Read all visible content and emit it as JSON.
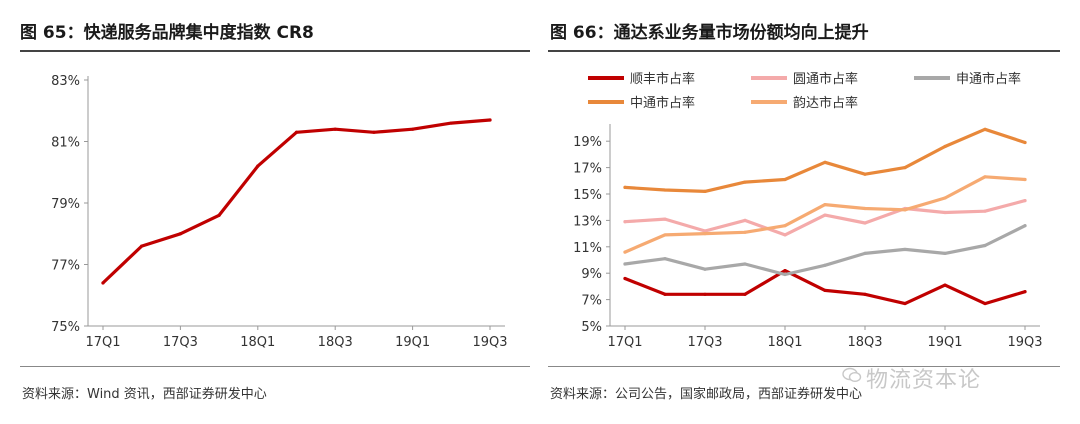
{
  "left": {
    "figure_title": "图 65：快递服务品牌集中度指数 CR8",
    "source": "资料来源：Wind 资讯，西部证券研发中心"
  },
  "right": {
    "figure_title": "图 66：通达系业务量市场份额均向上提升",
    "source": "资料来源：公司公告，国家邮政局，西部证券研发中心"
  },
  "watermark": "物流资本论",
  "chart_data": [
    {
      "type": "line",
      "title": "快递服务品牌集中度指数 CR8",
      "x": [
        "17Q1",
        "17Q2",
        "17Q3",
        "17Q4",
        "18Q1",
        "18Q2",
        "18Q3",
        "18Q4",
        "19Q1",
        "19Q2",
        "19Q3"
      ],
      "tick_labels": [
        "17Q1",
        "17Q3",
        "18Q1",
        "18Q3",
        "19Q1",
        "19Q3"
      ],
      "yticks": [
        "75%",
        "77%",
        "79%",
        "81%",
        "83%"
      ],
      "ylim": [
        75,
        83
      ],
      "series": [
        {
          "name": "CR8",
          "color": "#c00000",
          "values": [
            76.4,
            77.6,
            78.0,
            78.6,
            80.2,
            81.3,
            81.4,
            81.3,
            81.4,
            81.6,
            81.7
          ]
        }
      ],
      "xlabel": "",
      "ylabel": ""
    },
    {
      "type": "line",
      "title": "通达系业务量市场份额均向上提升",
      "x": [
        "17Q1",
        "17Q2",
        "17Q3",
        "17Q4",
        "18Q1",
        "18Q2",
        "18Q3",
        "18Q4",
        "19Q1",
        "19Q2",
        "19Q3"
      ],
      "tick_labels": [
        "17Q1",
        "17Q3",
        "18Q1",
        "18Q3",
        "19Q1",
        "19Q3"
      ],
      "yticks": [
        "5%",
        "7%",
        "9%",
        "11%",
        "13%",
        "15%",
        "17%",
        "19%"
      ],
      "ylim": [
        5,
        20
      ],
      "series": [
        {
          "name": "顺丰市占率",
          "color": "#c00000",
          "values": [
            8.6,
            7.4,
            7.4,
            7.4,
            9.2,
            7.7,
            7.4,
            6.7,
            8.1,
            6.7,
            7.6
          ]
        },
        {
          "name": "圆通市占率",
          "color": "#f4aaaa",
          "values": [
            12.9,
            13.1,
            12.2,
            13.0,
            11.9,
            13.4,
            12.8,
            13.9,
            13.6,
            13.7,
            14.5
          ]
        },
        {
          "name": "申通市占率",
          "color": "#a8a8a8",
          "values": [
            9.7,
            10.1,
            9.3,
            9.7,
            8.9,
            9.6,
            10.5,
            10.8,
            10.5,
            11.1,
            12.6
          ]
        },
        {
          "name": "中通市占率",
          "color": "#e8883a",
          "values": [
            15.5,
            15.3,
            15.2,
            15.9,
            16.1,
            17.4,
            16.5,
            17.0,
            18.6,
            19.9,
            18.9
          ]
        },
        {
          "name": "韵达市占率",
          "color": "#f6aa72",
          "values": [
            10.6,
            11.9,
            12.0,
            12.1,
            12.6,
            14.2,
            13.9,
            13.8,
            14.7,
            16.3,
            16.1
          ]
        }
      ],
      "legend": "top",
      "xlabel": "",
      "ylabel": ""
    }
  ]
}
